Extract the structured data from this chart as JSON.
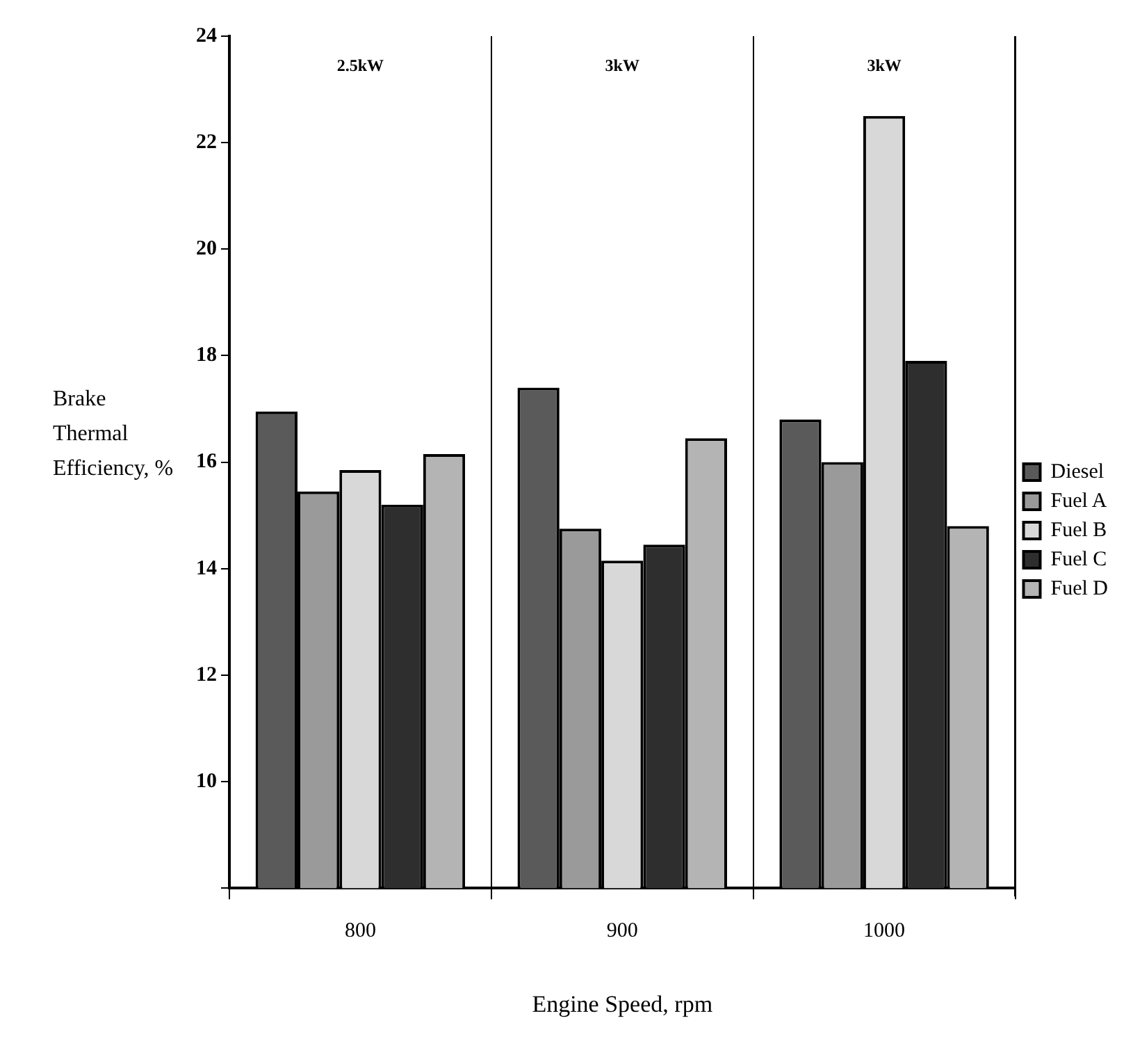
{
  "chart_data": {
    "type": "bar",
    "xlabel": "Engine Speed, rpm",
    "ylabel": "Brake Thermal Efficiency, %",
    "categories": [
      "800",
      "900",
      "1000"
    ],
    "series": [
      {
        "name": "Diesel",
        "color": "#5a5a5a",
        "values": [
          16.95,
          17.4,
          16.8
        ]
      },
      {
        "name": "Fuel A",
        "color": "#9a9a9a",
        "values": [
          15.45,
          14.75,
          16.0
        ]
      },
      {
        "name": "Fuel B",
        "color": "#d8d8d8",
        "values": [
          15.85,
          14.15,
          22.5
        ]
      },
      {
        "name": "Fuel C",
        "color": "#2e2e2e",
        "values": [
          15.2,
          14.45,
          17.9
        ]
      },
      {
        "name": "Fuel D",
        "color": "#b4b4b4",
        "values": [
          16.15,
          16.45,
          14.8
        ]
      }
    ],
    "ylim": [
      8,
      24
    ],
    "yticks": [
      {
        "value": 8,
        "label": null
      },
      10,
      12,
      14,
      16,
      18,
      20,
      22,
      24
    ],
    "grid": "x",
    "legend": "right",
    "annotations": [
      "2.5kW",
      "3kW",
      "3kW"
    ]
  }
}
